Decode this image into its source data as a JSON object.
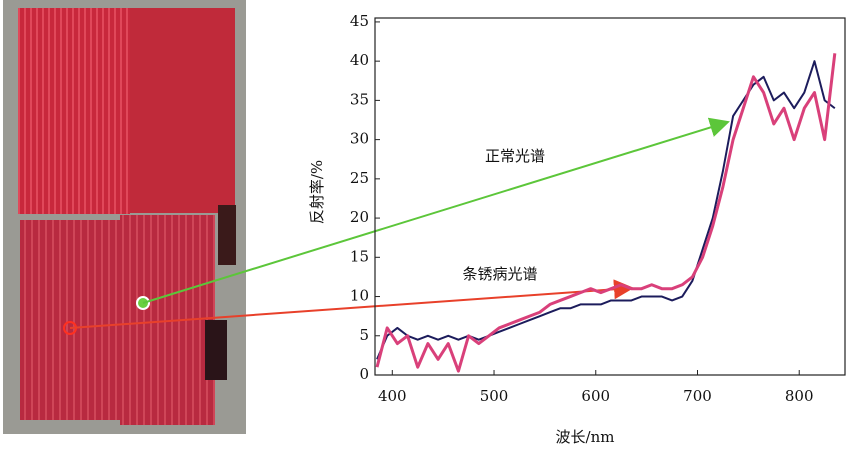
{
  "chart_data": {
    "type": "line",
    "y_label": "反射率/%",
    "x_label": "波长/nm",
    "xlim": [
      383,
      845
    ],
    "xticks": [
      400,
      500,
      600,
      700,
      800
    ],
    "ylim": [
      0,
      45.5
    ],
    "yticks": [
      0,
      5,
      10,
      15,
      20,
      25,
      30,
      35,
      40,
      45
    ],
    "x": [
      385,
      395,
      405,
      415,
      425,
      435,
      445,
      455,
      465,
      475,
      485,
      495,
      505,
      515,
      525,
      535,
      545,
      555,
      565,
      575,
      585,
      595,
      605,
      615,
      625,
      635,
      645,
      655,
      665,
      675,
      685,
      695,
      705,
      715,
      725,
      735,
      745,
      755,
      765,
      775,
      785,
      795,
      805,
      815,
      825,
      835
    ],
    "series": [
      {
        "name": "正常光谱",
        "color": "#1c1c5c",
        "values": [
          2,
          5,
          6,
          5,
          4.5,
          5,
          4.5,
          5,
          4.5,
          5,
          4.5,
          5,
          5.5,
          6,
          6.5,
          7,
          7.5,
          8,
          8.5,
          8.5,
          9,
          9,
          9,
          9.5,
          9.5,
          9.5,
          10,
          10,
          10,
          9.5,
          10,
          12,
          16,
          20,
          26,
          33,
          35,
          37,
          38,
          35,
          36,
          34,
          36,
          40,
          35,
          34
        ]
      },
      {
        "name": "条锈病光谱",
        "color": "#d9407a",
        "values": [
          1,
          6,
          4,
          5,
          1,
          4,
          2,
          4,
          0.5,
          5,
          4,
          5,
          6,
          6.5,
          7,
          7.5,
          8,
          9,
          9.5,
          10,
          10.5,
          11,
          10.5,
          11,
          11.5,
          11,
          11,
          11.5,
          11,
          11,
          11.5,
          12.5,
          15,
          19,
          24,
          30,
          34,
          38,
          36,
          32,
          34,
          30,
          34,
          36,
          30,
          41
        ]
      }
    ]
  }
}
